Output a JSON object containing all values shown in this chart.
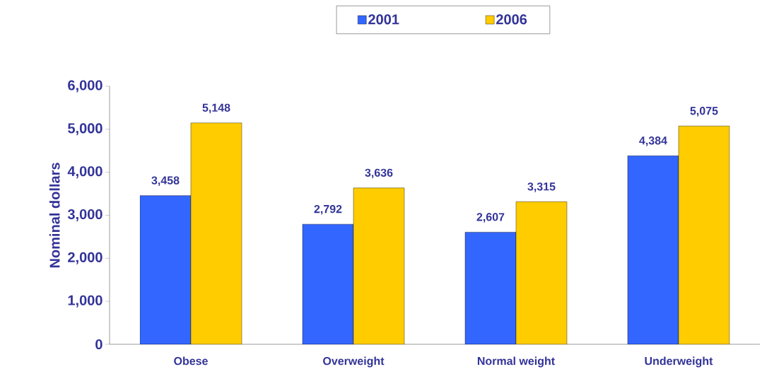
{
  "chart_data": {
    "type": "bar",
    "ylabel": "Nominal dollars",
    "categories": [
      "Obese",
      "Overweight",
      "Normal weight",
      "Underweight"
    ],
    "series": [
      {
        "name": "2001",
        "color": "#3366ff",
        "values": [
          3458,
          2792,
          2607,
          4384
        ],
        "value_labels": [
          "3,458",
          "2,792",
          "2,607",
          "4,384"
        ]
      },
      {
        "name": "2006",
        "color": "#ffcc00",
        "values": [
          5148,
          3636,
          3315,
          5075
        ],
        "value_labels": [
          "5,148",
          "3,636",
          "3,315",
          "5,075"
        ]
      }
    ],
    "ylim": [
      0,
      6000
    ],
    "yticks": [
      0,
      {
        "value": 1000,
        "label": "1,000"
      },
      {
        "value": 2000,
        "label": "2,000"
      },
      {
        "value": 3000,
        "label": "3,000"
      },
      {
        "value": 4000,
        "label": "4,000"
      },
      {
        "value": 5000,
        "label": "5,000"
      },
      {
        "value": 6000,
        "label": "6,000"
      }
    ],
    "grid": false,
    "legend": "top"
  }
}
